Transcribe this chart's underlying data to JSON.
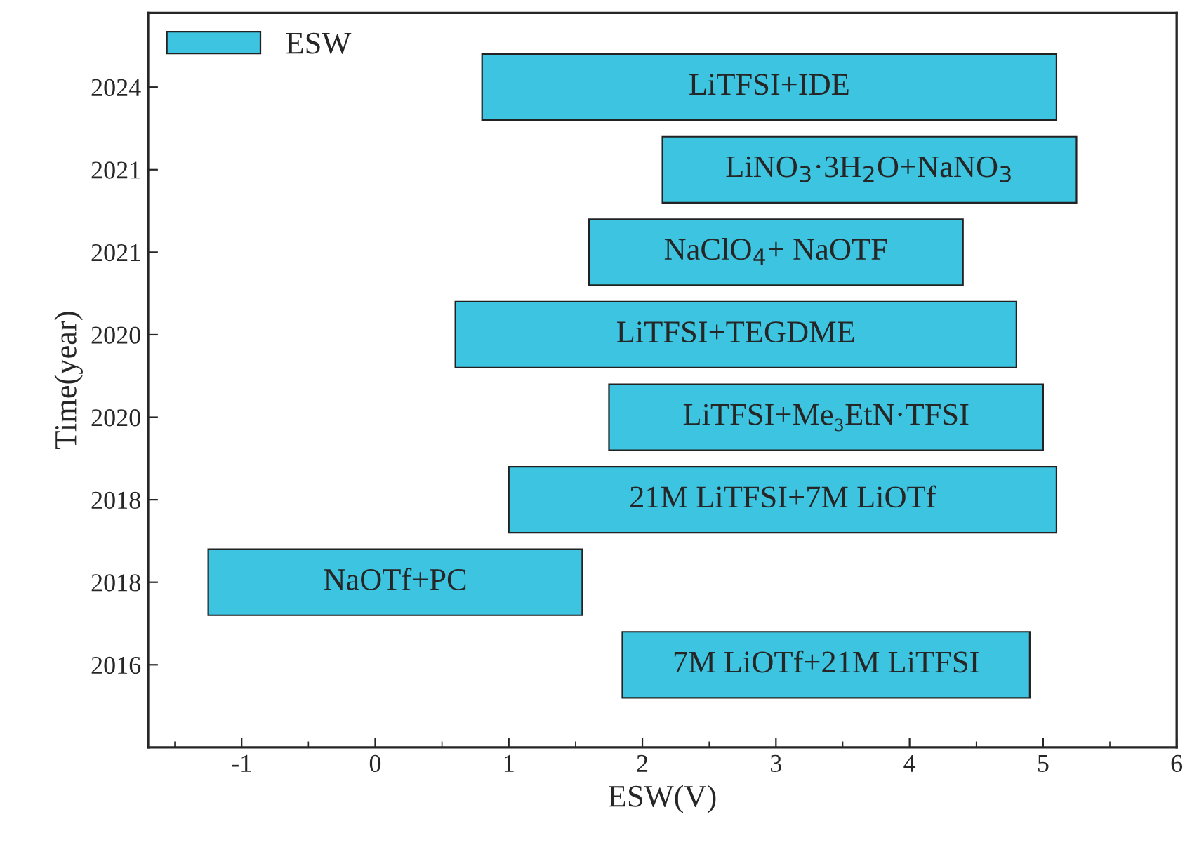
{
  "chart_data": {
    "type": "bar",
    "orientation": "horizontal",
    "xlabel": "ESW(V)",
    "ylabel": "Time(year)",
    "categories": [
      "2024",
      "2021",
      "2021",
      "2020",
      "2020",
      "2018",
      "2018",
      "2016"
    ],
    "series": [
      {
        "name": "ESW",
        "color": "#3cc4e0",
        "base": [
          0.8,
          2.15,
          1.6,
          0.6,
          1.75,
          1.0,
          -1.25,
          1.85
        ],
        "values": [
          4.3,
          3.1,
          2.8,
          4.2,
          3.25,
          4.1,
          2.8,
          3.05
        ]
      }
    ],
    "annotations": [
      "LiTFSI+IDE",
      "LiNO$_{3}$·3H$_{2}$O+NaNO$_{3}$",
      "NaClO$_{4}$+ NaOTF",
      "LiTFSI+TEGDME",
      "LiTFSI+Me₃EtN·TFSI",
      "21M LiTFSI+7M LiOTf",
      "NaOTf+PC",
      "7M LiOTf+21M LiTFSI"
    ],
    "xlim": [
      -1.7,
      6.0
    ],
    "xticks": [
      -1,
      0,
      1,
      2,
      3,
      4,
      5,
      6
    ],
    "legend": "top left",
    "grid": false
  }
}
